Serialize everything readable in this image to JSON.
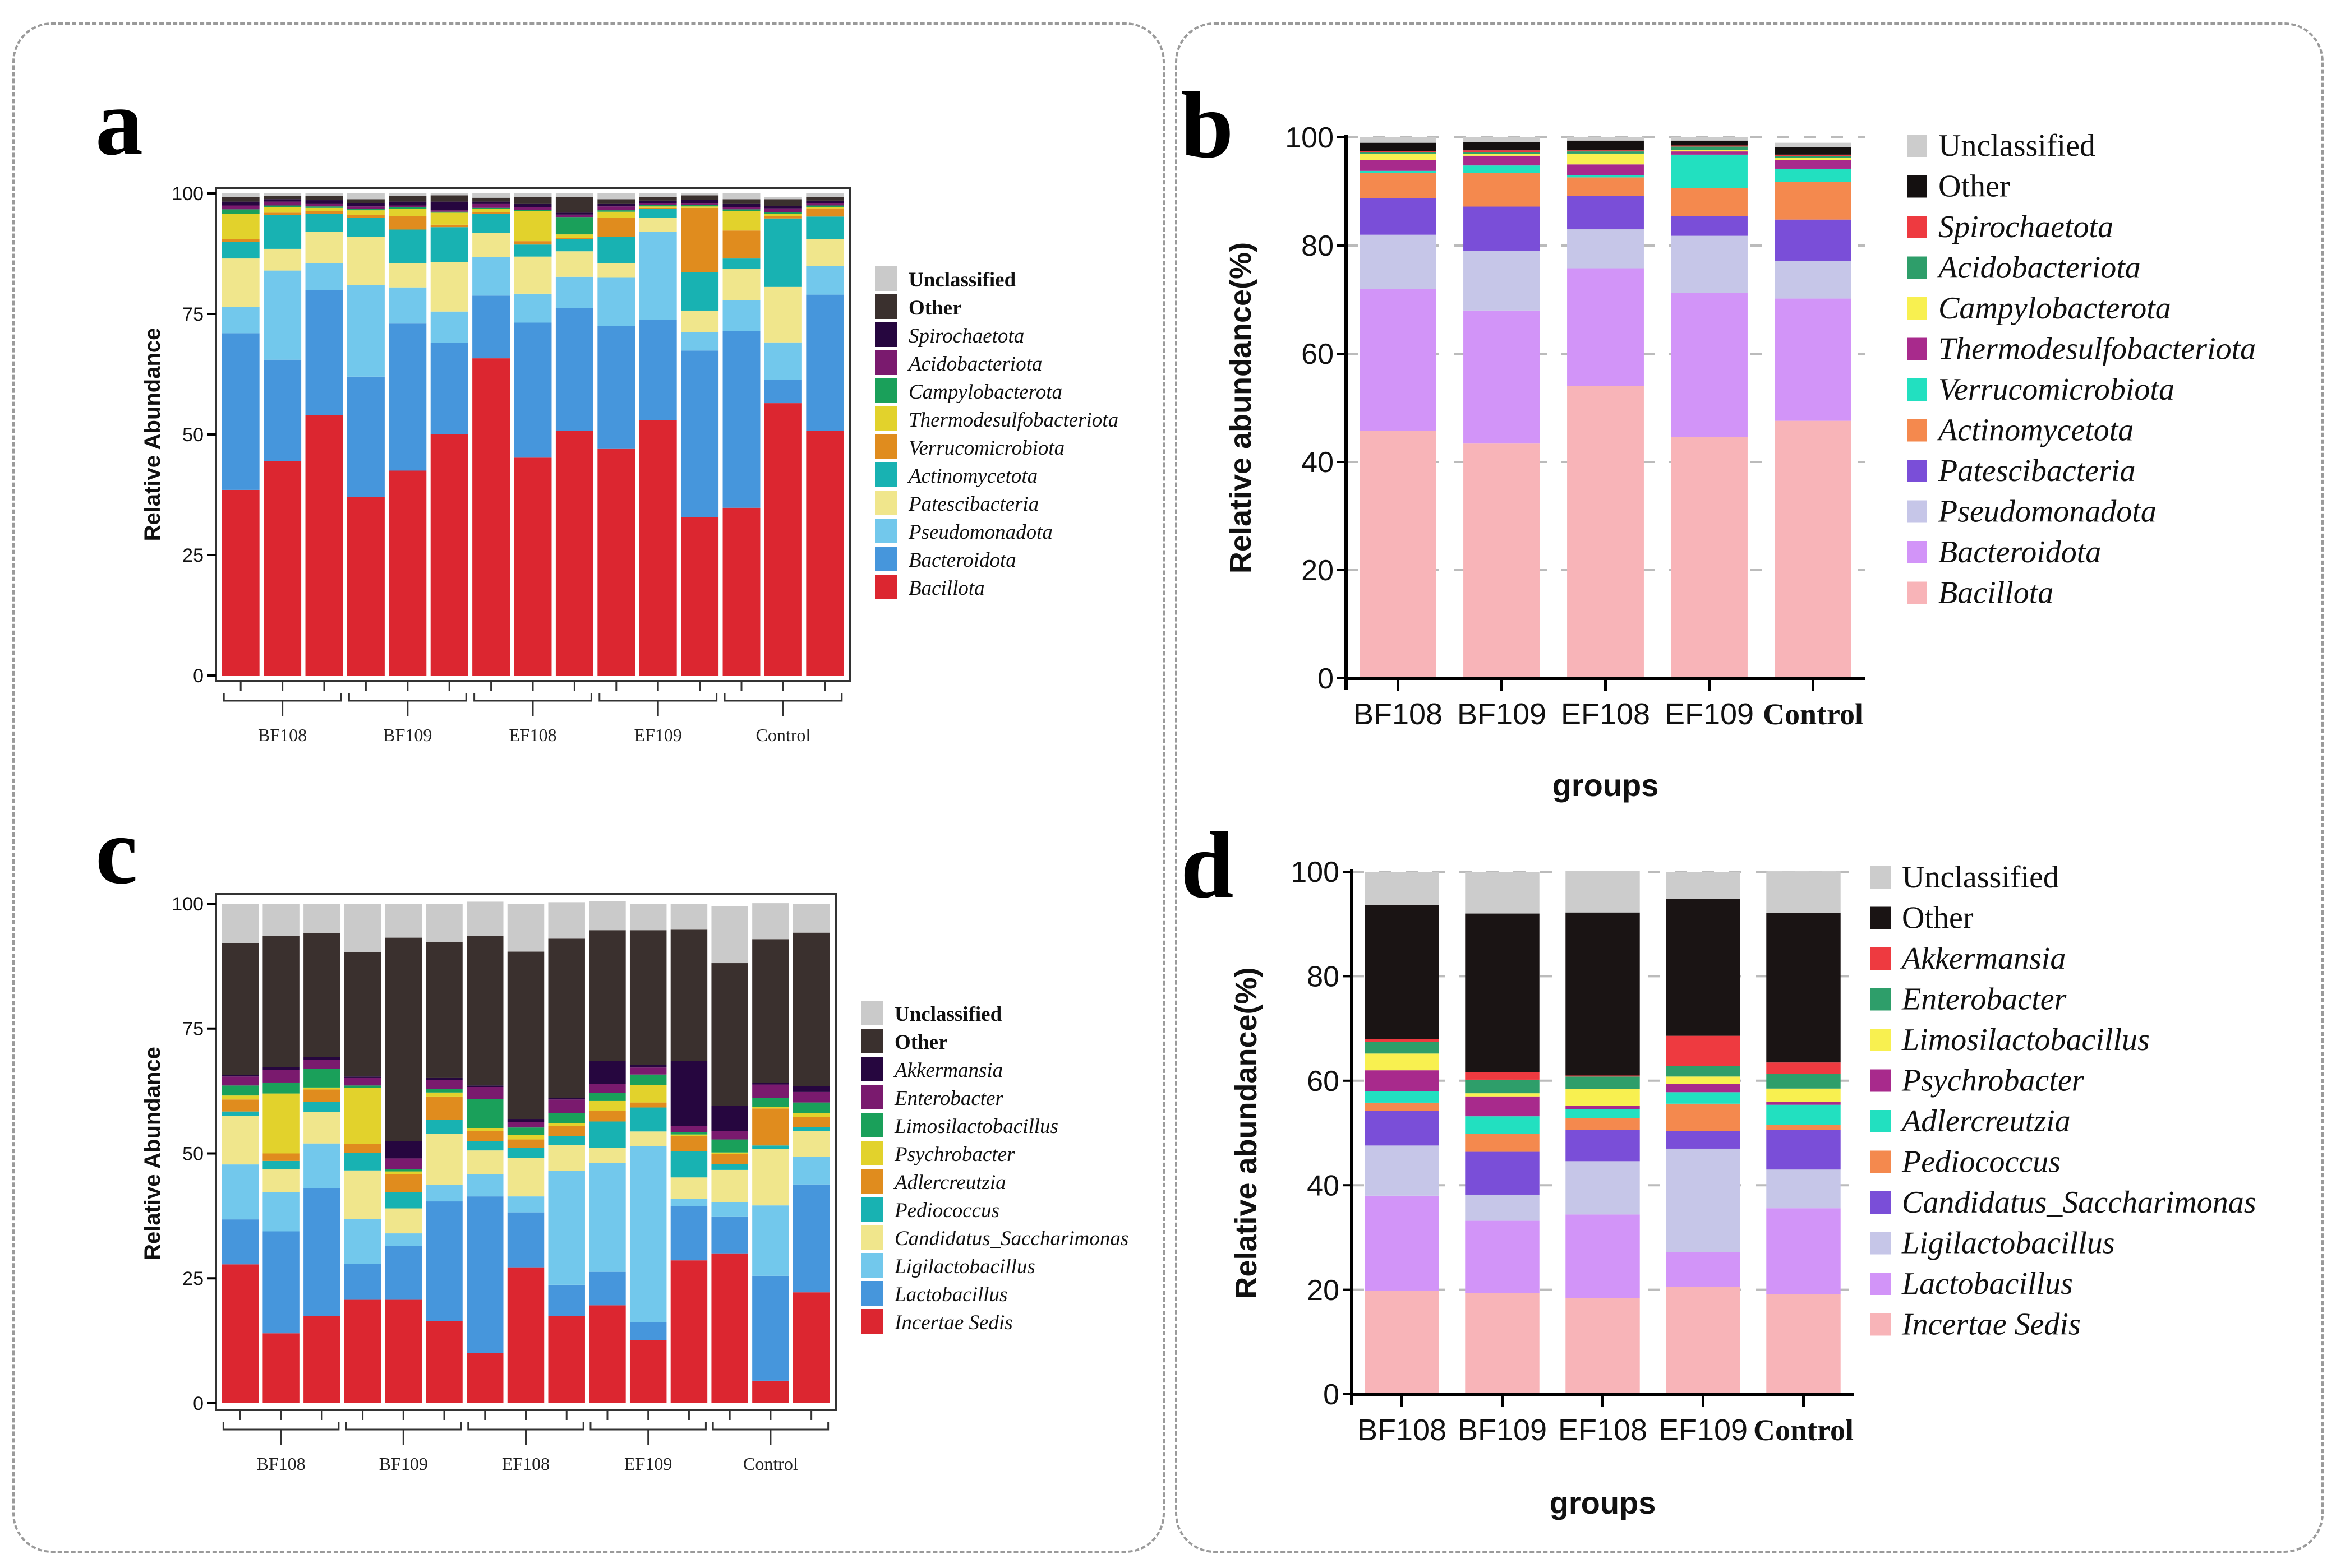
{
  "figure": {
    "panels": [
      "a",
      "b",
      "c",
      "d"
    ]
  },
  "chart_data": [
    {
      "id": "a",
      "panel_label": "a",
      "type": "bar",
      "stacked": true,
      "title": "",
      "xlabel": "",
      "ylabel": "Relative Abundance",
      "ylim": [
        0,
        100
      ],
      "yticks": [
        "0",
        "25",
        "50",
        "75",
        "100"
      ],
      "grid": false,
      "legend_position": "right",
      "group_labels": [
        "BF108",
        "BF109",
        "EF108",
        "EF109",
        "Control"
      ],
      "samples_per_group": [
        3,
        3,
        3,
        3,
        3
      ],
      "series": [
        {
          "name": "Bacillota",
          "italic": true,
          "color": "#DC2630",
          "values": [
            38.5,
            44.5,
            54,
            37,
            42.5,
            50,
            65.8,
            45.2,
            50.7,
            47,
            53,
            32.8,
            34.8,
            56.5,
            50.7
          ]
        },
        {
          "name": "Bacteroidota",
          "italic": true,
          "color": "#4696DC",
          "values": [
            32.5,
            21,
            26,
            25,
            30.5,
            19,
            13,
            28,
            25.5,
            25.5,
            20.8,
            34.6,
            36.6,
            4.8,
            28.3
          ]
        },
        {
          "name": "Pseudomonadota",
          "italic": true,
          "color": "#72C8EC",
          "values": [
            5.5,
            18.5,
            5.5,
            19,
            7.5,
            6.5,
            8,
            6,
            6.5,
            10,
            18.2,
            3.8,
            6.4,
            7.8,
            6
          ]
        },
        {
          "name": "Patescibacteria",
          "italic": true,
          "color": "#F0E68C",
          "values": [
            10,
            4.5,
            6.5,
            10,
            5,
            10.3,
            5,
            7.7,
            5.3,
            3,
            3,
            4.5,
            6.5,
            11.5,
            5.5
          ]
        },
        {
          "name": "Actinomycetota",
          "italic": true,
          "color": "#18B2B2",
          "values": [
            3.5,
            7,
            3.8,
            4,
            7,
            7.2,
            4,
            2.5,
            2.5,
            5.5,
            1.8,
            8,
            2.2,
            14.2,
            4.7
          ]
        },
        {
          "name": "Verrucomicrobiota",
          "italic": true,
          "color": "#E08C1E",
          "values": [
            0.5,
            0.5,
            0.5,
            0.5,
            2.8,
            0.5,
            0.3,
            0.7,
            0.3,
            4,
            0.2,
            13.3,
            5.8,
            0.5,
            1.7
          ]
        },
        {
          "name": "Thermodesulfobacteriota",
          "italic": true,
          "color": "#E2D22C",
          "values": [
            5.2,
            1.2,
            0.7,
            1,
            1.5,
            2.5,
            0.7,
            6.2,
            0.7,
            1.2,
            0.3,
            0.3,
            4,
            0.5,
            0.3
          ]
        },
        {
          "name": "Campylobacterota",
          "italic": true,
          "color": "#1AA05A",
          "values": [
            1,
            0.3,
            0.3,
            0.3,
            0.4,
            0.2,
            0.2,
            0.3,
            3.6,
            0.3,
            0.3,
            0.3,
            0.4,
            0.3,
            0.3
          ]
        },
        {
          "name": "Acidobacteriota",
          "italic": true,
          "color": "#7A1A6E",
          "values": [
            0.8,
            0.8,
            0.5,
            0.5,
            0.3,
            0.3,
            0.8,
            0.6,
            0.5,
            0.8,
            0.4,
            0.3,
            0.5,
            0.8,
            0.5
          ]
        },
        {
          "name": "Spirochaetota",
          "italic": true,
          "color": "#26063F",
          "values": [
            0.8,
            0.5,
            0.8,
            0.7,
            0.8,
            1.8,
            0.5,
            0.6,
            0.4,
            0.5,
            0.5,
            0.8,
            0.6,
            0.5,
            0.5
          ]
        },
        {
          "name": "Other",
          "italic": false,
          "color": "#3A302E",
          "values": [
            1,
            0.7,
            0.9,
            0.8,
            1.2,
            1.3,
            0.8,
            1.4,
            3.3,
            1,
            0.7,
            0.9,
            1,
            1.4,
            0.8
          ]
        },
        {
          "name": "Unclassified",
          "italic": false,
          "color": "#CACACA",
          "values": [
            0.7,
            0.5,
            0.5,
            1.2,
            0.5,
            0.4,
            0.9,
            0.8,
            0.7,
            1.2,
            0.8,
            0.4,
            1.2,
            0.5,
            0.7
          ]
        }
      ]
    },
    {
      "id": "b",
      "panel_label": "b",
      "type": "bar",
      "stacked": true,
      "title": "",
      "xlabel": "groups",
      "ylabel": "Relative abundance(%)",
      "ylim": [
        0,
        100
      ],
      "yticks": [
        "0",
        "20",
        "40",
        "60",
        "80",
        "100"
      ],
      "grid": true,
      "legend_position": "right",
      "categories": [
        "BF108",
        "BF109",
        "EF108",
        "EF109",
        "Control"
      ],
      "series": [
        {
          "name": "Bacillota",
          "italic": true,
          "color": "#F8B4B8",
          "values": [
            45.8,
            43.4,
            54.0,
            44.6,
            47.6
          ]
        },
        {
          "name": "Bacteroidota",
          "italic": true,
          "color": "#D294F8",
          "values": [
            26.2,
            24.6,
            21.8,
            26.6,
            22.6
          ]
        },
        {
          "name": "Pseudomonadota",
          "italic": true,
          "color": "#C6C6E8",
          "values": [
            10.0,
            11.0,
            7.2,
            10.6,
            7.0
          ]
        },
        {
          "name": "Patescibacteria",
          "italic": true,
          "color": "#7A4ED8",
          "values": [
            6.8,
            8.2,
            6.2,
            3.6,
            7.6
          ]
        },
        {
          "name": "Actinomycetota",
          "italic": true,
          "color": "#F4894E",
          "values": [
            4.6,
            6.2,
            3.4,
            5.2,
            7.0
          ]
        },
        {
          "name": "Verrucomicrobiota",
          "italic": true,
          "color": "#22E0C0",
          "values": [
            0.4,
            1.4,
            0.4,
            6.2,
            2.4
          ]
        },
        {
          "name": "Thermodesulfobacteriota",
          "italic": true,
          "color": "#A82A8C",
          "values": [
            2.0,
            1.8,
            2.0,
            0.6,
            1.6
          ]
        },
        {
          "name": "Campylobacterota",
          "italic": true,
          "color": "#F8F050",
          "values": [
            1.2,
            0.3,
            2.0,
            0.3,
            0.4
          ]
        },
        {
          "name": "Acidobacteriota",
          "italic": true,
          "color": "#2E9E6A",
          "values": [
            0.3,
            0.3,
            0.4,
            0.6,
            0.3
          ]
        },
        {
          "name": "Spirochaetota",
          "italic": true,
          "color": "#EE3A40",
          "values": [
            0.2,
            0.4,
            0.2,
            0.2,
            0.3
          ]
        },
        {
          "name": "Other",
          "italic": false,
          "color": "#141010",
          "values": [
            1.5,
            1.5,
            1.8,
            0.9,
            1.4
          ]
        },
        {
          "name": "Unclassified",
          "italic": false,
          "color": "#CCCCCC",
          "values": [
            1.0,
            0.9,
            0.6,
            0.7,
            0.8
          ]
        }
      ]
    },
    {
      "id": "c",
      "panel_label": "c",
      "type": "bar",
      "stacked": true,
      "title": "",
      "xlabel": "",
      "ylabel": "Relative Abundance",
      "ylim": [
        0,
        100
      ],
      "yticks": [
        "0",
        "25",
        "50",
        "75",
        "100"
      ],
      "grid": false,
      "legend_position": "right",
      "group_labels": [
        "BF108",
        "BF109",
        "EF108",
        "EF109",
        "Control"
      ],
      "samples_per_group": [
        3,
        3,
        3,
        3,
        3
      ],
      "series": [
        {
          "name": "Incertae Sedis",
          "italic": true,
          "color": "#DC2630",
          "values": [
            27.8,
            14,
            17.4,
            20.7,
            20.7,
            16.4,
            10,
            27.2,
            17.4,
            19.6,
            12.6,
            28.6,
            30,
            4.5,
            22.2
          ]
        },
        {
          "name": "Lactobacillus",
          "italic": true,
          "color": "#4696DC",
          "values": [
            9,
            20.4,
            25.6,
            7.2,
            10.8,
            24,
            31.4,
            11,
            6.3,
            6.7,
            3.6,
            10.9,
            7.4,
            21,
            21.6
          ]
        },
        {
          "name": "Ligilactobacillus",
          "italic": true,
          "color": "#72C8EC",
          "values": [
            11,
            7.9,
            9,
            9,
            2.5,
            3.3,
            4.4,
            3.2,
            22.8,
            21.8,
            35.3,
            1.4,
            2.8,
            14.1,
            5.5
          ]
        },
        {
          "name": "Candidatus_Saccharimonas",
          "italic": true,
          "color": "#F0E68C",
          "values": [
            9.7,
            4.5,
            6.3,
            9.7,
            5,
            10.2,
            4.8,
            7.7,
            5.2,
            3,
            2.9,
            4.3,
            6.5,
            11.3,
            5.2
          ]
        },
        {
          "name": "Pediococcus",
          "italic": true,
          "color": "#18B2B2",
          "values": [
            0.9,
            1.7,
            2,
            3.5,
            3.3,
            2.8,
            1.9,
            2,
            1.8,
            5.3,
            4.8,
            5.3,
            1.2,
            0.7,
            0.8
          ]
        },
        {
          "name": "Adlercreutzia",
          "italic": true,
          "color": "#E08C1E",
          "values": [
            2.4,
            1.5,
            2.5,
            1.8,
            3.5,
            4.7,
            2,
            1.7,
            2,
            2.1,
            1,
            3,
            2,
            7.4,
            2
          ]
        },
        {
          "name": "Psychrobacter",
          "italic": true,
          "color": "#E2D22C",
          "values": [
            0.8,
            12,
            0.4,
            11.2,
            0.6,
            0.8,
            0.6,
            0.9,
            0.6,
            2,
            3.5,
            0.3,
            0.3,
            0.3,
            0.8
          ]
        },
        {
          "name": "Limosilactobacillus",
          "italic": true,
          "color": "#1AA05A",
          "values": [
            2,
            2.2,
            3.8,
            0.5,
            0.4,
            0.7,
            5.8,
            1.5,
            2,
            1.6,
            2.1,
            0.5,
            2.6,
            1.8,
            2.1
          ]
        },
        {
          "name": "Enterobacter",
          "italic": true,
          "color": "#7A1A6E",
          "values": [
            1.8,
            2.5,
            1.7,
            1.5,
            2.2,
            1.8,
            2.4,
            1.1,
            2.7,
            1.8,
            1.4,
            1.2,
            1.7,
            2.7,
            2.1
          ]
        },
        {
          "name": "Akkermansia",
          "italic": true,
          "color": "#26063F",
          "values": [
            0.3,
            0.6,
            0.6,
            0.3,
            3.5,
            0.4,
            0.3,
            0.6,
            0.3,
            4.6,
            0.5,
            13,
            5,
            0.3,
            1.2
          ]
        },
        {
          "name": "Other",
          "italic": false,
          "color": "#3A302E",
          "values": [
            26.4,
            26.2,
            24.8,
            24.9,
            40.7,
            27.2,
            29.9,
            33.5,
            31.9,
            26.2,
            27,
            26.3,
            28.6,
            28.8,
            30.7
          ]
        },
        {
          "name": "Unclassified",
          "italic": false,
          "color": "#CACACA",
          "values": [
            7.9,
            6.5,
            5.9,
            9.7,
            6.8,
            7.7,
            6.9,
            9.6,
            7.3,
            5.8,
            5.3,
            5.2,
            11.4,
            7.2,
            5.8
          ]
        }
      ]
    },
    {
      "id": "d",
      "panel_label": "d",
      "type": "bar",
      "stacked": true,
      "title": "",
      "xlabel": "groups",
      "ylabel": "Relative abundance(%)",
      "ylim": [
        0,
        100
      ],
      "yticks": [
        "0",
        "20",
        "40",
        "60",
        "80",
        "100"
      ],
      "grid": true,
      "legend_position": "right",
      "categories": [
        "BF108",
        "BF109",
        "EF108",
        "EF109",
        "Control"
      ],
      "series": [
        {
          "name": "Incertae Sedis",
          "italic": true,
          "color": "#F8B4B8",
          "values": [
            19.8,
            19.4,
            18.4,
            20.6,
            19.2
          ]
        },
        {
          "name": "Lactobacillus",
          "italic": true,
          "color": "#D294F8",
          "values": [
            18.2,
            13.8,
            16.0,
            6.6,
            16.4
          ]
        },
        {
          "name": "Ligilactobacillus",
          "italic": true,
          "color": "#C6C6E8",
          "values": [
            9.6,
            5.0,
            10.2,
            19.8,
            7.4
          ]
        },
        {
          "name": "Candidatus_Saccharimonas",
          "italic": true,
          "color": "#7A4ED8",
          "values": [
            6.6,
            8.2,
            6.0,
            3.4,
            7.6
          ]
        },
        {
          "name": "Pediococcus",
          "italic": true,
          "color": "#F4894E",
          "values": [
            1.6,
            3.4,
            2.2,
            5.2,
            1.0
          ]
        },
        {
          "name": "Adlercreutzia",
          "italic": true,
          "color": "#22E0C0",
          "values": [
            2.2,
            3.4,
            1.8,
            2.2,
            3.8
          ]
        },
        {
          "name": "Psychrobacter",
          "italic": true,
          "color": "#A82A8C",
          "values": [
            4.0,
            3.8,
            0.6,
            1.6,
            0.5
          ]
        },
        {
          "name": "Limosilactobacillus",
          "italic": true,
          "color": "#F8F050",
          "values": [
            3.2,
            0.6,
            3.2,
            1.4,
            2.6
          ]
        },
        {
          "name": "Enterobacter",
          "italic": true,
          "color": "#2E9E6A",
          "values": [
            2.2,
            2.6,
            2.4,
            2.0,
            2.8
          ]
        },
        {
          "name": "Akkermansia",
          "italic": true,
          "color": "#EE3A40",
          "values": [
            0.6,
            1.4,
            0.2,
            5.8,
            2.2
          ]
        },
        {
          "name": "Other",
          "italic": false,
          "color": "#1A1414",
          "values": [
            25.6,
            30.4,
            31.2,
            26.2,
            28.6
          ]
        },
        {
          "name": "Unclassified",
          "italic": false,
          "color": "#CCCCCC",
          "values": [
            6.4,
            8.0,
            8.0,
            5.2,
            8.0
          ]
        }
      ]
    }
  ]
}
